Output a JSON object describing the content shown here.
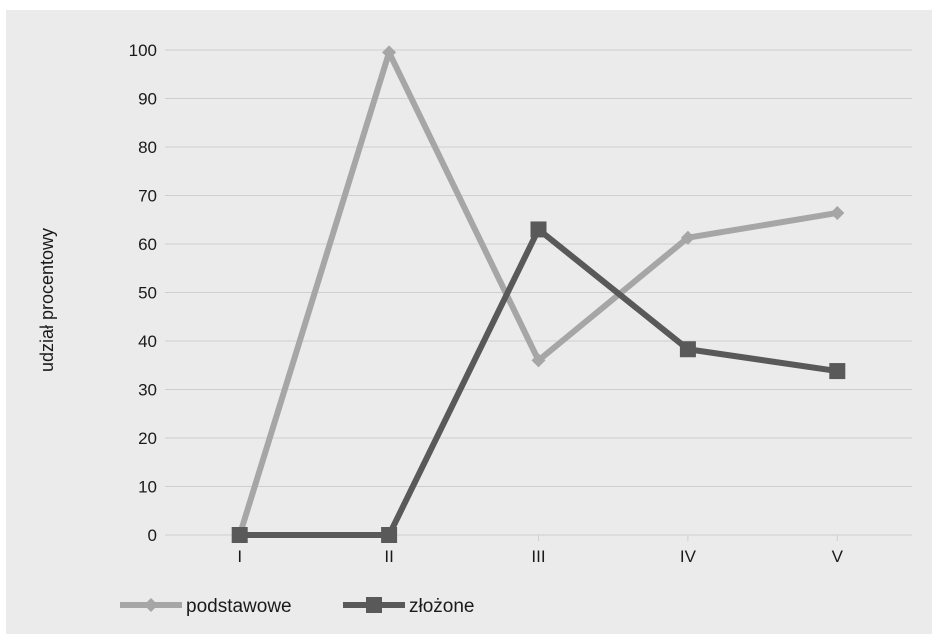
{
  "chart_data": {
    "type": "line",
    "categories": [
      "I",
      "II",
      "III",
      "IV",
      "V"
    ],
    "ylabel": "udział procentowy",
    "xlabel": "",
    "ylim": [
      0,
      100
    ],
    "yticks": [
      0,
      10,
      20,
      30,
      40,
      50,
      60,
      70,
      80,
      90,
      100
    ],
    "grid": true,
    "legend_position": "bottom-left",
    "series": [
      {
        "name": "podstawowe",
        "values": [
          0,
          99.5,
          36,
          61.3,
          66.4
        ],
        "color": "#a6a6a6",
        "marker": "diamond"
      },
      {
        "name": "złożone",
        "values": [
          0,
          0,
          63,
          38.3,
          33.8
        ],
        "color": "#595959",
        "marker": "square"
      }
    ]
  }
}
